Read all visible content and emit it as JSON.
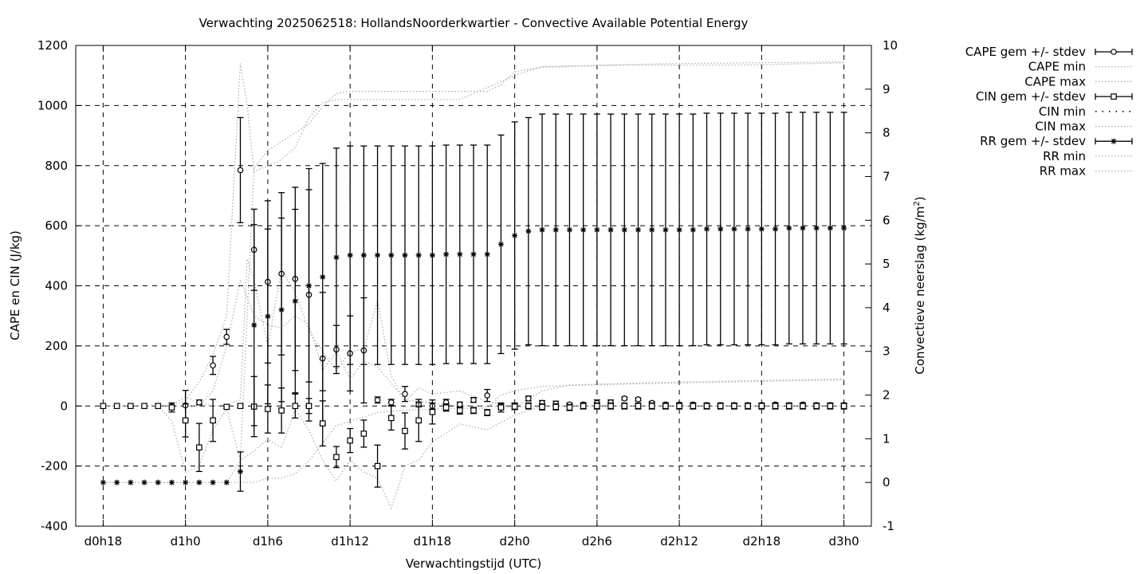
{
  "chart_data": {
    "type": "scatter",
    "title": "Verwachting 2025062518: HollandsNoorderkwartier - Convective Available Potential Energy",
    "xlabel": "Verwachtingstijd (UTC)",
    "ylabel_left": "CAPE en CIN (J/kg)",
    "ylabel_right_main": "Convectieve neerslag (kg/m",
    "ylabel_right_sup": "2",
    "ylabel_right_close": ")",
    "x_ticks": [
      "d0h18",
      "d1h0",
      "d1h6",
      "d1h12",
      "d1h18",
      "d2h0",
      "d2h6",
      "d2h12",
      "d2h18",
      "d3h0"
    ],
    "x_range_hours": [
      16,
      74
    ],
    "ylim_left": [
      -400,
      1200
    ],
    "ylim_right": [
      -1,
      10
    ],
    "y_ticks_left": [
      -400,
      -200,
      0,
      200,
      400,
      600,
      800,
      1000,
      1200
    ],
    "y_ticks_right": [
      -1,
      0,
      1,
      2,
      3,
      4,
      5,
      6,
      7,
      8,
      9,
      10
    ],
    "grid": true,
    "legend_position": "top-right outside",
    "legend": [
      {
        "label": "CAPE gem +/- stdev",
        "style": "errbar-circle"
      },
      {
        "label": "CAPE min",
        "style": "dotted"
      },
      {
        "label": "CAPE max",
        "style": "dotted"
      },
      {
        "label": "CIN gem +/- stdev",
        "style": "errbar-square"
      },
      {
        "label": "CIN min",
        "style": "dotted-black"
      },
      {
        "label": "CIN max",
        "style": "dotted"
      },
      {
        "label": "RR gem +/- stdev",
        "style": "errbar-star"
      },
      {
        "label": "RR min",
        "style": "dotted"
      },
      {
        "label": "RR max",
        "style": "dotted"
      }
    ],
    "x_hours": [
      18,
      19,
      20,
      21,
      22,
      23,
      24,
      25,
      26,
      27,
      28,
      29,
      30,
      31,
      32,
      33,
      34,
      35,
      36,
      37,
      38,
      39,
      40,
      41,
      42,
      43,
      44,
      45,
      46,
      47,
      48,
      49,
      50,
      51,
      52,
      53,
      54,
      55,
      56,
      57,
      58,
      59,
      60,
      61,
      62,
      63,
      64,
      65,
      66,
      67,
      68,
      69,
      70,
      71,
      72
    ],
    "series": [
      {
        "name": "CAPE gem +/- stdev",
        "axis": "left",
        "marker": "circle",
        "mean": [
          0,
          0,
          0,
          0,
          0,
          0,
          2,
          12,
          135,
          230,
          785,
          520,
          413,
          440,
          423,
          370,
          158,
          188,
          175,
          185,
          20,
          12,
          40,
          5,
          0,
          12,
          5,
          20,
          35,
          0,
          0,
          25,
          10,
          8,
          5,
          5,
          10,
          12,
          25,
          22,
          10,
          5,
          5,
          5,
          3,
          3,
          3,
          3,
          3,
          5,
          3,
          5,
          3,
          3,
          3
        ],
        "stdev": [
          0,
          0,
          0,
          0,
          0,
          0,
          50,
          8,
          30,
          25,
          175,
          135,
          270,
          270,
          305,
          420,
          220,
          80,
          125,
          175,
          10,
          10,
          25,
          8,
          10,
          10,
          8,
          8,
          20,
          8,
          10,
          8,
          8,
          8,
          5,
          5,
          10,
          8,
          5,
          5,
          5,
          5,
          5,
          5,
          5,
          5,
          5,
          5,
          5,
          5,
          5,
          5,
          5,
          5,
          5
        ]
      },
      {
        "name": "CIN gem +/- stdev",
        "axis": "left",
        "marker": "square",
        "mean": [
          0,
          0,
          0,
          0,
          0,
          -5,
          -48,
          -138,
          -48,
          -3,
          0,
          -2,
          -10,
          -15,
          0,
          0,
          -58,
          -170,
          -115,
          -92,
          -200,
          -40,
          -83,
          -48,
          -20,
          -5,
          -15,
          -15,
          -22,
          -5,
          -2,
          0,
          -3,
          -3,
          -5,
          0,
          0,
          0,
          0,
          0,
          0,
          0,
          0,
          0,
          0,
          0,
          0,
          0,
          0,
          0,
          0,
          0,
          0,
          0,
          0
        ],
        "stdev": [
          0,
          0,
          0,
          0,
          0,
          15,
          55,
          80,
          70,
          5,
          5,
          100,
          80,
          75,
          40,
          25,
          75,
          35,
          40,
          45,
          70,
          40,
          60,
          70,
          40,
          12,
          12,
          10,
          10,
          15,
          10,
          10,
          10,
          10,
          10,
          10,
          10,
          10,
          10,
          10,
          10,
          10,
          10,
          10,
          10,
          10,
          10,
          10,
          10,
          10,
          10,
          10,
          10,
          10,
          10
        ]
      },
      {
        "name": "RR gem +/- stdev",
        "axis": "right",
        "marker": "star",
        "mean": [
          0,
          0,
          0,
          0,
          0,
          0,
          0,
          0,
          0,
          0,
          0.25,
          3.6,
          3.8,
          3.95,
          4.15,
          4.5,
          4.7,
          5.15,
          5.2,
          5.2,
          5.2,
          5.2,
          5.2,
          5.2,
          5.2,
          5.22,
          5.22,
          5.22,
          5.22,
          5.45,
          5.65,
          5.75,
          5.78,
          5.78,
          5.78,
          5.78,
          5.78,
          5.78,
          5.78,
          5.78,
          5.78,
          5.78,
          5.78,
          5.78,
          5.8,
          5.8,
          5.8,
          5.8,
          5.8,
          5.8,
          5.82,
          5.82,
          5.82,
          5.82,
          5.82
        ],
        "stdev": [
          0,
          0,
          0,
          0,
          0,
          0,
          0,
          0,
          0,
          0,
          0.45,
          2.3,
          2.0,
          2.1,
          2.1,
          2.2,
          2.6,
          2.5,
          2.5,
          2.5,
          2.5,
          2.5,
          2.5,
          2.5,
          2.5,
          2.5,
          2.5,
          2.5,
          2.5,
          2.5,
          2.6,
          2.6,
          2.65,
          2.65,
          2.65,
          2.65,
          2.65,
          2.65,
          2.65,
          2.65,
          2.65,
          2.65,
          2.65,
          2.65,
          2.65,
          2.65,
          2.65,
          2.65,
          2.65,
          2.65,
          2.65,
          2.65,
          2.65,
          2.65,
          2.65
        ]
      }
    ],
    "envelopes": [
      {
        "name": "CAPE max",
        "axis": "left",
        "x": [
          18,
          22,
          23,
          24,
          25,
          26,
          27,
          28,
          28.5,
          29,
          30,
          31,
          32,
          33,
          34,
          35,
          36,
          38,
          40,
          44,
          48,
          50,
          60,
          72
        ],
        "y": [
          0,
          0,
          0,
          20,
          80,
          170,
          300,
          1140,
          1000,
          780,
          800,
          820,
          860,
          960,
          1010,
          1020,
          1020,
          1020,
          1020,
          1020,
          1100,
          1130,
          1140,
          1145
        ]
      },
      {
        "name": "CAPE min",
        "axis": "left",
        "x": [
          18,
          22,
          23,
          24,
          25,
          26,
          27,
          28,
          29,
          30,
          31,
          32,
          33,
          34,
          35,
          36,
          37,
          38,
          40,
          42,
          44,
          46,
          48,
          50,
          52,
          60,
          72
        ],
        "y": [
          0,
          0,
          0,
          0,
          0,
          50,
          200,
          420,
          300,
          270,
          260,
          300,
          270,
          120,
          180,
          90,
          150,
          130,
          20,
          10,
          0,
          0,
          -5,
          0,
          0,
          0,
          0
        ]
      },
      {
        "name": "CIN max",
        "axis": "left",
        "x": [
          18,
          22,
          23,
          24,
          25,
          26,
          27,
          28,
          28.5,
          29,
          30,
          31,
          32,
          33,
          34,
          35,
          36,
          37,
          38,
          39,
          40,
          41,
          42,
          44,
          46,
          48,
          50,
          52,
          60,
          72
        ],
        "y": [
          0,
          0,
          5,
          30,
          10,
          0,
          5,
          20,
          490,
          420,
          200,
          450,
          380,
          250,
          180,
          120,
          180,
          190,
          350,
          100,
          15,
          60,
          40,
          50,
          15,
          -5,
          50,
          70,
          80,
          90
        ]
      },
      {
        "name": "CIN min",
        "axis": "left",
        "x": [
          18,
          22,
          23,
          24,
          25,
          26,
          27,
          28,
          29,
          30,
          31,
          32,
          33,
          34,
          35,
          36,
          37,
          38,
          39,
          40,
          41,
          42,
          44,
          46,
          48,
          50,
          52,
          60,
          72
        ],
        "y": [
          0,
          0,
          -50,
          -220,
          -200,
          -80,
          -10,
          -180,
          -150,
          -110,
          -140,
          -10,
          -80,
          -180,
          -250,
          -180,
          -220,
          -240,
          -340,
          -200,
          -180,
          -120,
          -60,
          -80,
          -30,
          0,
          0,
          0,
          0
        ]
      },
      {
        "name": "RR max",
        "axis": "right",
        "x": [
          18,
          27,
          28,
          29,
          30,
          31,
          32,
          33,
          34,
          35,
          36,
          37,
          38,
          40,
          44,
          46,
          47,
          48,
          50,
          56,
          64,
          72
        ],
        "y": [
          0,
          0,
          0.5,
          7.2,
          7.6,
          7.8,
          8.0,
          8.2,
          8.6,
          8.9,
          8.95,
          8.95,
          8.95,
          8.95,
          8.95,
          8.95,
          9.1,
          9.4,
          9.5,
          9.55,
          9.55,
          9.6
        ]
      },
      {
        "name": "RR min",
        "axis": "right",
        "x": [
          18,
          27,
          28,
          29,
          30,
          31,
          32,
          33,
          34,
          35,
          36,
          37,
          38,
          40,
          44,
          46,
          47,
          48,
          50,
          56,
          64,
          72
        ],
        "y": [
          0,
          0,
          0,
          0,
          0.1,
          0.1,
          0.2,
          0.5,
          0.9,
          1.3,
          1.4,
          1.5,
          1.6,
          1.65,
          1.7,
          1.7,
          2.0,
          2.1,
          2.2,
          2.25,
          2.3,
          2.35
        ]
      }
    ]
  }
}
